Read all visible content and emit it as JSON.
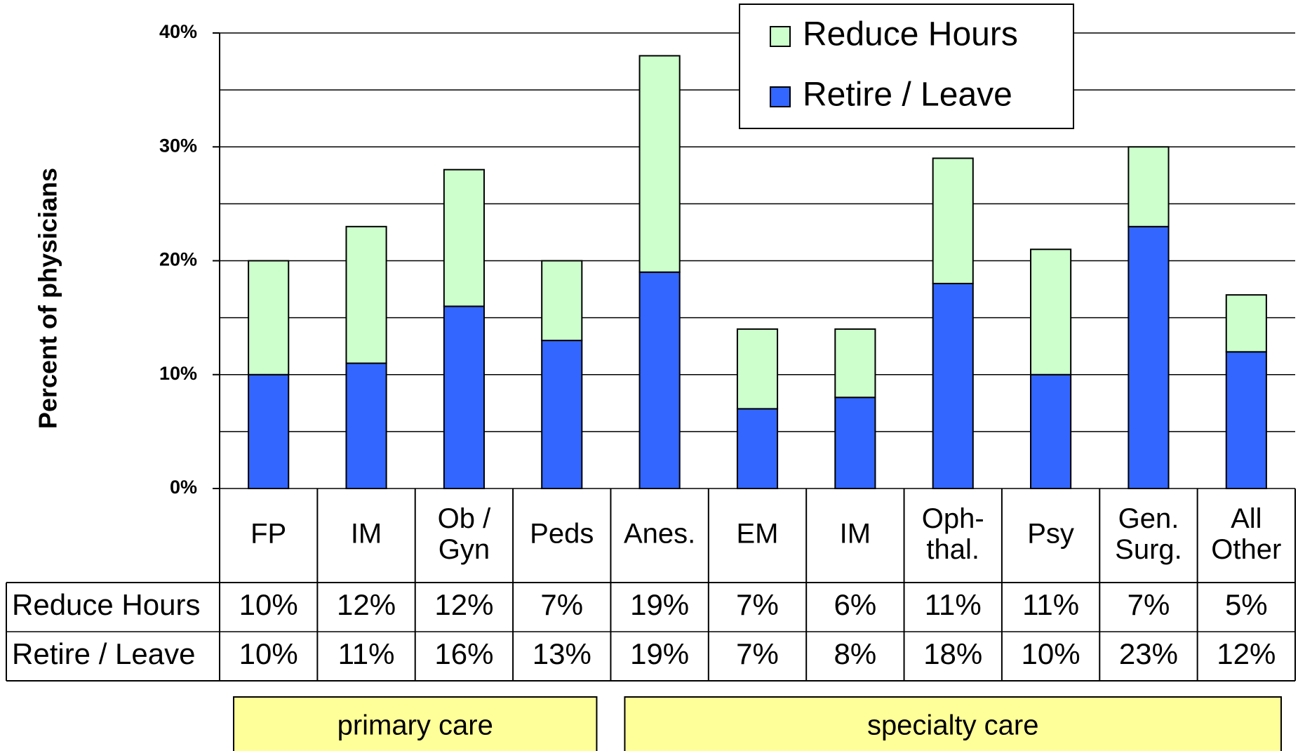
{
  "chart_data": {
    "type": "stacked_bar",
    "y_axis_label": "Percent of physicians",
    "categories": [
      "FP",
      "IM",
      "Ob /\nGyn",
      "Peds",
      "Anes.",
      "EM",
      "IM",
      "Oph-\nthal.",
      "Psy",
      "Gen.\nSurg.",
      "All\nOther"
    ],
    "series": [
      {
        "name": "Reduce Hours",
        "color": "#ccffcc",
        "values": [
          10,
          12,
          12,
          7,
          19,
          7,
          6,
          11,
          11,
          7,
          5
        ],
        "value_labels": [
          "10%",
          "12%",
          "12%",
          "7%",
          "19%",
          "7%",
          "6%",
          "11%",
          "11%",
          "7%",
          "5%"
        ]
      },
      {
        "name": "Retire / Leave",
        "color": "#3366ff",
        "values": [
          10,
          11,
          16,
          13,
          19,
          7,
          8,
          18,
          10,
          23,
          12
        ],
        "value_labels": [
          "10%",
          "11%",
          "16%",
          "13%",
          "19%",
          "7%",
          "8%",
          "18%",
          "10%",
          "23%",
          "12%"
        ]
      }
    ],
    "ylim": [
      0,
      40
    ],
    "yticks": [
      {
        "value": 0,
        "label": "0%"
      },
      {
        "value": 10,
        "label": "10%"
      },
      {
        "value": 20,
        "label": "20%"
      },
      {
        "value": 30,
        "label": "30%"
      },
      {
        "value": 40,
        "label": "40%"
      }
    ],
    "yminor": [
      5,
      15,
      25,
      35
    ],
    "grid": true,
    "legend": "top-right",
    "group_labels": [
      "primary care",
      "specialty care"
    ]
  }
}
